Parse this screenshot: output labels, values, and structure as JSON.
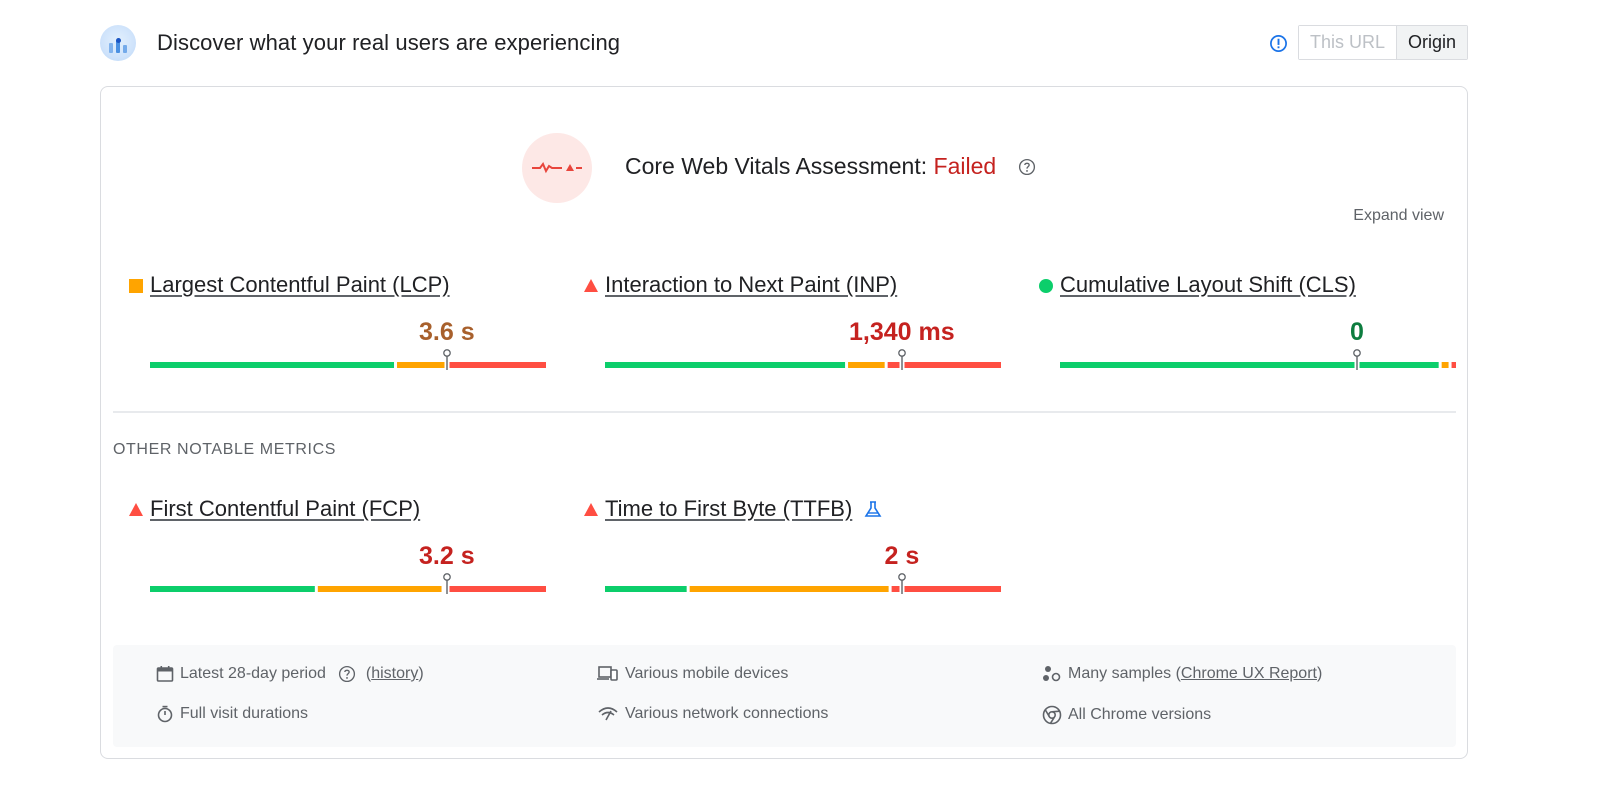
{
  "header": {
    "title": "Discover what your real users are experiencing",
    "logo_icon": "crux-report-icon",
    "info_icon": "info-icon",
    "toggle": {
      "this_url": "This URL",
      "origin": "Origin",
      "selected": "Origin"
    }
  },
  "assessment": {
    "label": "Core Web Vitals Assessment: ",
    "status": "Failed",
    "status_color": "#c5221f",
    "help_icon": "help-icon",
    "expand_view": "Expand view"
  },
  "colors": {
    "good": "#0cce6b",
    "needs_improvement": "#ffa400",
    "poor": "#ff4e42"
  },
  "core_metrics": [
    {
      "name": "Largest Contentful Paint (LCP)",
      "value": "3.6 s",
      "rating": "needs-improvement",
      "value_color": "#a8602c",
      "distribution": [
        0.62,
        0.13,
        0.25
      ],
      "percentile_position": 0.75
    },
    {
      "name": "Interaction to Next Paint (INP)",
      "value": "1,340 ms",
      "rating": "poor",
      "value_color": "#c5221f",
      "distribution": [
        0.61,
        0.1,
        0.29
      ],
      "percentile_position": 0.75
    },
    {
      "name": "Cumulative Layout Shift (CLS)",
      "value": "0",
      "rating": "good",
      "value_color": "#0d7d3f",
      "distribution": [
        0.96,
        0.025,
        0.015
      ],
      "percentile_position": 0.75
    }
  ],
  "other_section_label": "OTHER NOTABLE METRICS",
  "other_metrics": [
    {
      "name": "First Contentful Paint (FCP)",
      "value": "3.2 s",
      "rating": "poor",
      "value_color": "#c5221f",
      "distribution": [
        0.42,
        0.32,
        0.26
      ],
      "percentile_position": 0.75,
      "experimental": false
    },
    {
      "name": "Time to First Byte (TTFB)",
      "value": "2 s",
      "rating": "poor",
      "value_color": "#c5221f",
      "distribution": [
        0.21,
        0.51,
        0.28
      ],
      "percentile_position": 0.75,
      "experimental": true
    }
  ],
  "footer": {
    "period": "Latest 28-day period",
    "history_link": "history",
    "visit_durations": "Full visit durations",
    "devices": "Various mobile devices",
    "network": "Various network connections",
    "samples_prefix": "Many samples (",
    "samples_link": "Chrome UX Report",
    "samples_suffix": ")",
    "chrome_versions": "All Chrome versions"
  }
}
